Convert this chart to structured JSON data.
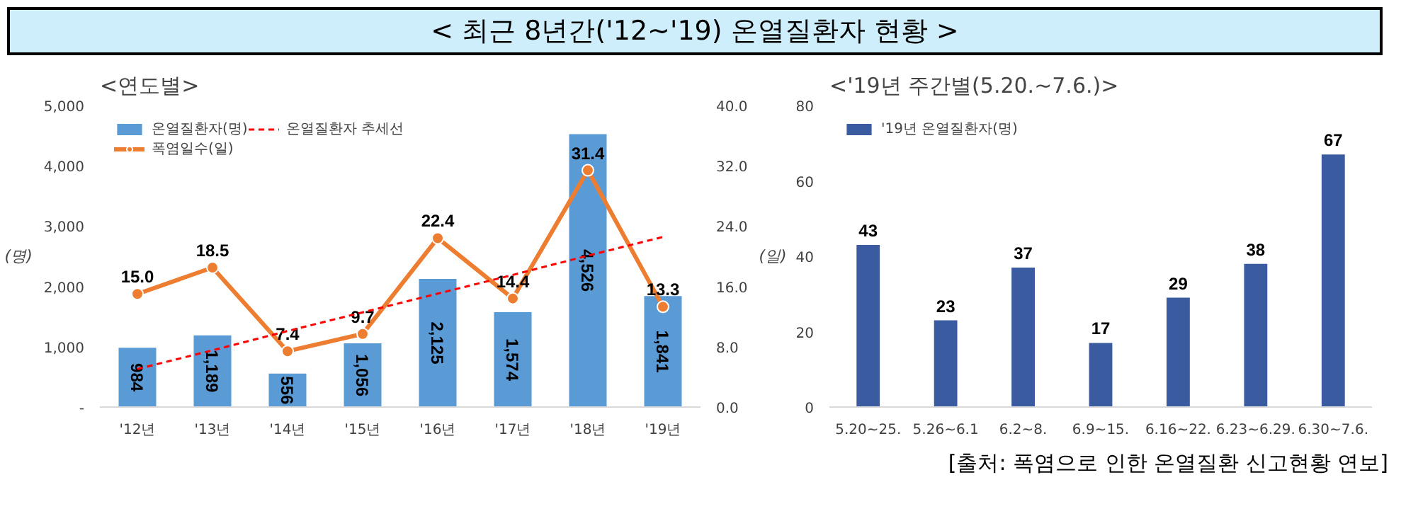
{
  "chart_data": [
    {
      "type": "bar",
      "title": "< 최근 8년간('12~'19) 온열질환자 현황 >",
      "subtitle": "<연도별>",
      "categories": [
        "'12년",
        "'13년",
        "'14년",
        "'15년",
        "'16년",
        "'17년",
        "'18년",
        "'19년"
      ],
      "series": [
        {
          "name": "온열질환자(명)",
          "type": "bar",
          "color": "#5b9bd5",
          "values": [
            984,
            1189,
            556,
            1056,
            2125,
            1574,
            4526,
            1841
          ],
          "value_labels": [
            "984",
            "1,189",
            "556",
            "1,056",
            "2,125",
            "1,574",
            "4,526",
            "1,841"
          ]
        },
        {
          "name": "폭염일수(일)",
          "type": "line",
          "axis": "y2",
          "color": "#ed7d31",
          "marker": "circle",
          "values": [
            15.0,
            18.5,
            7.4,
            9.7,
            22.4,
            14.4,
            31.4,
            13.3
          ],
          "value_labels": [
            "15.0",
            "18.5",
            "7.4",
            "9.7",
            "22.4",
            "14.4",
            "31.4",
            "13.3"
          ]
        },
        {
          "name": "온열질환자 추세선",
          "type": "line",
          "color": "#ff0000",
          "line_style": "dashed",
          "values": [
            630,
            940,
            1260,
            1570,
            1880,
            2190,
            2510,
            2820
          ]
        }
      ],
      "ylabel": "(명)",
      "y2label": "(일)",
      "ylim": [
        0,
        5000
      ],
      "yticks": [
        {
          "value": 0,
          "label": "-"
        },
        {
          "value": 1000,
          "label": "1,000"
        },
        {
          "value": 2000,
          "label": "2,000"
        },
        {
          "value": 3000,
          "label": "3,000"
        },
        {
          "value": 4000,
          "label": "4,000"
        },
        {
          "value": 5000,
          "label": "5,000"
        }
      ],
      "y2lim": [
        0,
        40
      ],
      "y2ticks": [
        {
          "value": 0,
          "label": "0.0"
        },
        {
          "value": 8,
          "label": "8.0"
        },
        {
          "value": 16,
          "label": "16.0"
        },
        {
          "value": 24,
          "label": "24.0"
        },
        {
          "value": 32,
          "label": "32.0"
        },
        {
          "value": 40,
          "label": "40.0"
        }
      ],
      "legend": "top left"
    },
    {
      "type": "bar",
      "title": "<'19년 주간별(5.20.~7.6.)>",
      "categories": [
        "5.20~25.",
        "5.26~6.1",
        "6.2~8.",
        "6.9~15.",
        "6.16~22.",
        "6.23~6.29.",
        "6.30~7.6."
      ],
      "series": [
        {
          "name": "'19년 온열질환자(명)",
          "color": "#3a5ba0",
          "values": [
            43,
            23,
            37,
            17,
            29,
            38,
            67
          ]
        }
      ],
      "ylim": [
        0,
        80
      ],
      "yticks": [
        0,
        20,
        40,
        60,
        80
      ],
      "data_labels": true,
      "legend": "top left",
      "annotations": [
        "[출처: 폭염으로 인한 온열질환 신고현황 연보]"
      ]
    }
  ]
}
